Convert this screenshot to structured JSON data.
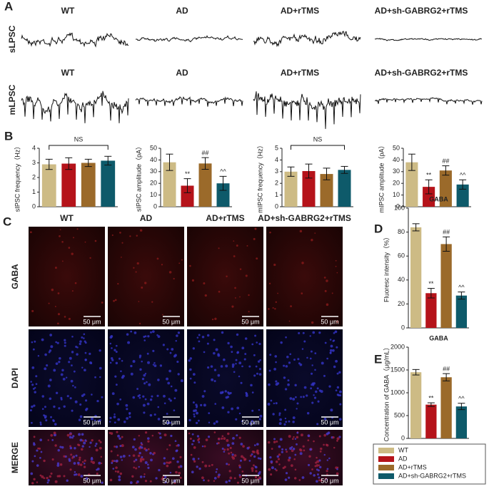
{
  "panel_labels": {
    "a": "A",
    "b": "B",
    "c": "C",
    "d": "D",
    "e": "E"
  },
  "panel_a": {
    "columns": [
      "WT",
      "AD",
      "AD+rTMS",
      "AD+sh-GABRG2+rTMS"
    ],
    "rows": [
      "sLPSC",
      "mLPSC"
    ]
  },
  "panel_c": {
    "columns": [
      "WT",
      "AD",
      "AD+rTMS",
      "AD+sh-GABRG2+rTMS"
    ],
    "rows": [
      "GABA",
      "DAPI",
      "MERGE"
    ],
    "scale_bar": "50 μm"
  },
  "legend": {
    "entries": [
      {
        "name": "WT",
        "color": "#cdbb85"
      },
      {
        "name": "AD",
        "color": "#b5131a"
      },
      {
        "name": "AD+rTMS",
        "color": "#9b6a2a"
      },
      {
        "name": "AD+sh-GABRG2+rTMS",
        "color": "#0e5a6a"
      }
    ]
  },
  "chart_data": [
    {
      "type": "bar",
      "y_label": "sIPSC frequency（Hz）",
      "ylim": [
        0,
        4
      ],
      "yticks": [
        0,
        1,
        2,
        3,
        4
      ],
      "values": [
        2.9,
        2.95,
        3.0,
        3.15
      ],
      "errors": [
        0.35,
        0.4,
        0.25,
        0.3
      ],
      "markers": [
        null,
        null,
        null,
        null
      ],
      "bracket": "NS"
    },
    {
      "type": "bar",
      "y_label": "sIPSC amplitude（pA）",
      "ylim": [
        0,
        50
      ],
      "yticks": [
        0,
        10,
        20,
        30,
        40,
        50
      ],
      "values": [
        38,
        18,
        37,
        20
      ],
      "errors": [
        7,
        6,
        5,
        6
      ],
      "markers": [
        null,
        "**",
        "##",
        "^^"
      ]
    },
    {
      "type": "bar",
      "y_label": "mIPSC frequency（Hz）",
      "ylim": [
        0,
        5
      ],
      "yticks": [
        0,
        1,
        2,
        3,
        4,
        5
      ],
      "values": [
        3.0,
        3.05,
        2.8,
        3.15
      ],
      "errors": [
        0.4,
        0.6,
        0.5,
        0.3
      ],
      "markers": [
        null,
        null,
        null,
        null
      ],
      "bracket": "NS"
    },
    {
      "type": "bar",
      "y_label": "mIPSC amplitude（pA）",
      "ylim": [
        0,
        50
      ],
      "yticks": [
        0,
        10,
        20,
        30,
        40,
        50
      ],
      "values": [
        38,
        17,
        31,
        19
      ],
      "errors": [
        7,
        6,
        4,
        4
      ],
      "markers": [
        null,
        "**",
        "##",
        "^^"
      ]
    },
    {
      "type": "bar",
      "title": "GABA",
      "y_label": "Fluoresc intensity（%）",
      "ylim": [
        0,
        100
      ],
      "yticks": [
        0,
        20,
        40,
        60,
        80,
        100
      ],
      "values": [
        84,
        29,
        70,
        27
      ],
      "errors": [
        3,
        4,
        6,
        3
      ],
      "markers": [
        null,
        "**",
        "##",
        "^^"
      ]
    },
    {
      "type": "bar",
      "title": "GABA",
      "y_label": "Concentration of GABA（μg/mL）",
      "ylim": [
        0,
        2000
      ],
      "yticks": [
        0,
        500,
        1000,
        1500,
        2000
      ],
      "values": [
        1450,
        740,
        1340,
        700
      ],
      "errors": [
        60,
        40,
        80,
        70
      ],
      "markers": [
        null,
        "**",
        "##",
        "^^"
      ]
    }
  ]
}
